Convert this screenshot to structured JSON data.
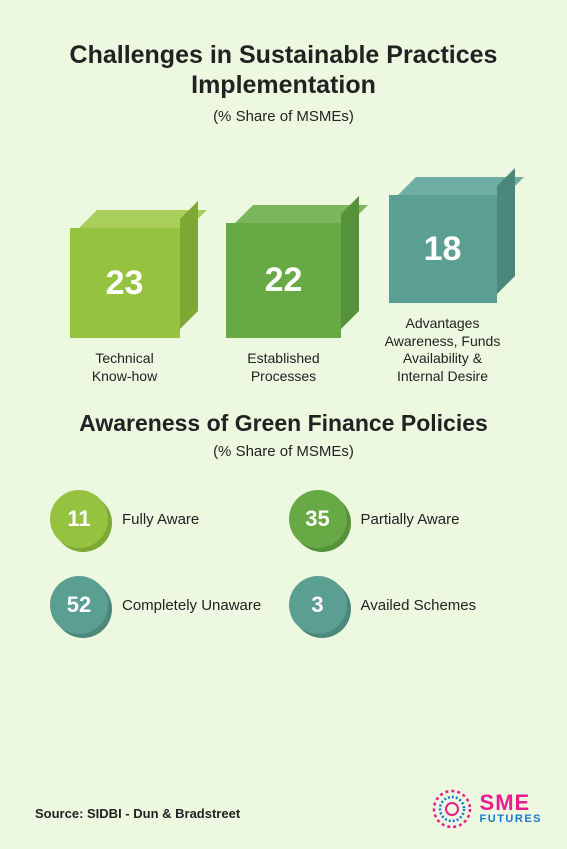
{
  "section1": {
    "title": "Challenges in Sustainable Practices Implementation",
    "subtitle": "(% Share of MSMEs)",
    "cubes": [
      {
        "value": "23",
        "label": "Technical\nKnow-how",
        "size": 110,
        "yoffset": 50,
        "front": "#96c33f",
        "top": "#a9ce59",
        "side": "#7ea834"
      },
      {
        "value": "22",
        "label": "Established\nProcesses",
        "size": 115,
        "yoffset": 0,
        "front": "#66a945",
        "top": "#7bb65c",
        "side": "#55923a"
      },
      {
        "value": "18",
        "label": "Advantages\nAwareness, Funds\nAvailability &\nInternal Desire",
        "size": 108,
        "yoffset": 40,
        "front": "#5b9e92",
        "top": "#70ada2",
        "side": "#4c877c"
      }
    ]
  },
  "section2": {
    "title": "Awareness of Green Finance Policies",
    "subtitle": "(% Share of MSMEs)",
    "items": [
      {
        "value": "11",
        "label": "Fully Aware",
        "front": "#96c33f",
        "shadow": "#7ea834"
      },
      {
        "value": "35",
        "label": "Partially Aware",
        "front": "#66a945",
        "shadow": "#55923a"
      },
      {
        "value": "52",
        "label": "Completely Unaware",
        "front": "#5b9e92",
        "shadow": "#4c877c"
      },
      {
        "value": "3",
        "label": "Availed Schemes",
        "front": "#5b9e92",
        "shadow": "#4c877c"
      }
    ]
  },
  "source": "Source: SIDBI - Dun & Bradstreet",
  "logo": {
    "sme": "SME",
    "futures": "FUTURES"
  }
}
